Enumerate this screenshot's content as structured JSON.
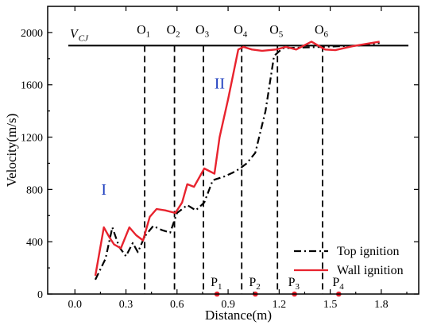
{
  "chart_data": {
    "type": "line",
    "xlabel": "Distance(m)",
    "ylabel": "Velocity(m/s)",
    "xlim": [
      -0.16,
      2.02
    ],
    "ylim": [
      0,
      2200
    ],
    "x_ticks": [
      "0.0",
      "0.3",
      "0.6",
      "0.9",
      "1.2",
      "1.5",
      "1.8"
    ],
    "y_ticks": [
      "0",
      "400",
      "800",
      "1200",
      "1600",
      "2000"
    ],
    "reference_line": {
      "label_main": "V",
      "label_sub": "CJ",
      "value": 1900
    },
    "vertical_markers": [
      {
        "main": "O",
        "sub": "1",
        "x": 0.41
      },
      {
        "main": "O",
        "sub": "2",
        "x": 0.585
      },
      {
        "main": "O",
        "sub": "3",
        "x": 0.755
      },
      {
        "main": "O",
        "sub": "4",
        "x": 0.98
      },
      {
        "main": "O",
        "sub": "5",
        "x": 1.19
      },
      {
        "main": "O",
        "sub": "6",
        "x": 1.455
      }
    ],
    "sensor_points": [
      {
        "main": "P",
        "sub": "1",
        "x": 0.835
      },
      {
        "main": "P",
        "sub": "2",
        "x": 1.06
      },
      {
        "main": "P",
        "sub": "3",
        "x": 1.29
      },
      {
        "main": "P",
        "sub": "4",
        "x": 1.55
      }
    ],
    "regions": [
      {
        "label": "I",
        "x": 0.17,
        "y": 760
      },
      {
        "label": "II",
        "x": 0.85,
        "y": 1570
      }
    ],
    "series": [
      {
        "name": "Top ignition",
        "color": "#000000",
        "style": "dashdot",
        "points": [
          [
            0.12,
            110
          ],
          [
            0.18,
            270
          ],
          [
            0.22,
            510
          ],
          [
            0.26,
            360
          ],
          [
            0.3,
            290
          ],
          [
            0.34,
            390
          ],
          [
            0.37,
            320
          ],
          [
            0.41,
            440
          ],
          [
            0.46,
            520
          ],
          [
            0.51,
            490
          ],
          [
            0.56,
            470
          ],
          [
            0.6,
            620
          ],
          [
            0.66,
            680
          ],
          [
            0.71,
            640
          ],
          [
            0.76,
            700
          ],
          [
            0.81,
            870
          ],
          [
            0.88,
            900
          ],
          [
            0.93,
            930
          ],
          [
            0.97,
            960
          ],
          [
            1.01,
            1000
          ],
          [
            1.06,
            1080
          ],
          [
            1.12,
            1400
          ],
          [
            1.17,
            1820
          ],
          [
            1.22,
            1880
          ],
          [
            1.33,
            1885
          ],
          [
            1.45,
            1890
          ],
          [
            1.55,
            1895
          ],
          [
            1.65,
            1900
          ],
          [
            1.72,
            1905
          ],
          [
            1.79,
            1920
          ]
        ]
      },
      {
        "name": "Wall ignition",
        "color": "#e8232e",
        "style": "solid",
        "points": [
          [
            0.12,
            140
          ],
          [
            0.17,
            510
          ],
          [
            0.2,
            440
          ],
          [
            0.23,
            380
          ],
          [
            0.27,
            350
          ],
          [
            0.32,
            510
          ],
          [
            0.36,
            450
          ],
          [
            0.4,
            410
          ],
          [
            0.44,
            590
          ],
          [
            0.48,
            650
          ],
          [
            0.53,
            640
          ],
          [
            0.59,
            620
          ],
          [
            0.63,
            700
          ],
          [
            0.66,
            840
          ],
          [
            0.7,
            820
          ],
          [
            0.76,
            960
          ],
          [
            0.82,
            920
          ],
          [
            0.85,
            1200
          ],
          [
            0.9,
            1490
          ],
          [
            0.96,
            1870
          ],
          [
            0.99,
            1890
          ],
          [
            1.04,
            1870
          ],
          [
            1.1,
            1860
          ],
          [
            1.18,
            1870
          ],
          [
            1.24,
            1890
          ],
          [
            1.3,
            1870
          ],
          [
            1.39,
            1930
          ],
          [
            1.47,
            1870
          ],
          [
            1.53,
            1865
          ],
          [
            1.63,
            1895
          ],
          [
            1.72,
            1915
          ],
          [
            1.79,
            1930
          ]
        ]
      }
    ],
    "legend": {
      "position": "bottom-right"
    }
  }
}
